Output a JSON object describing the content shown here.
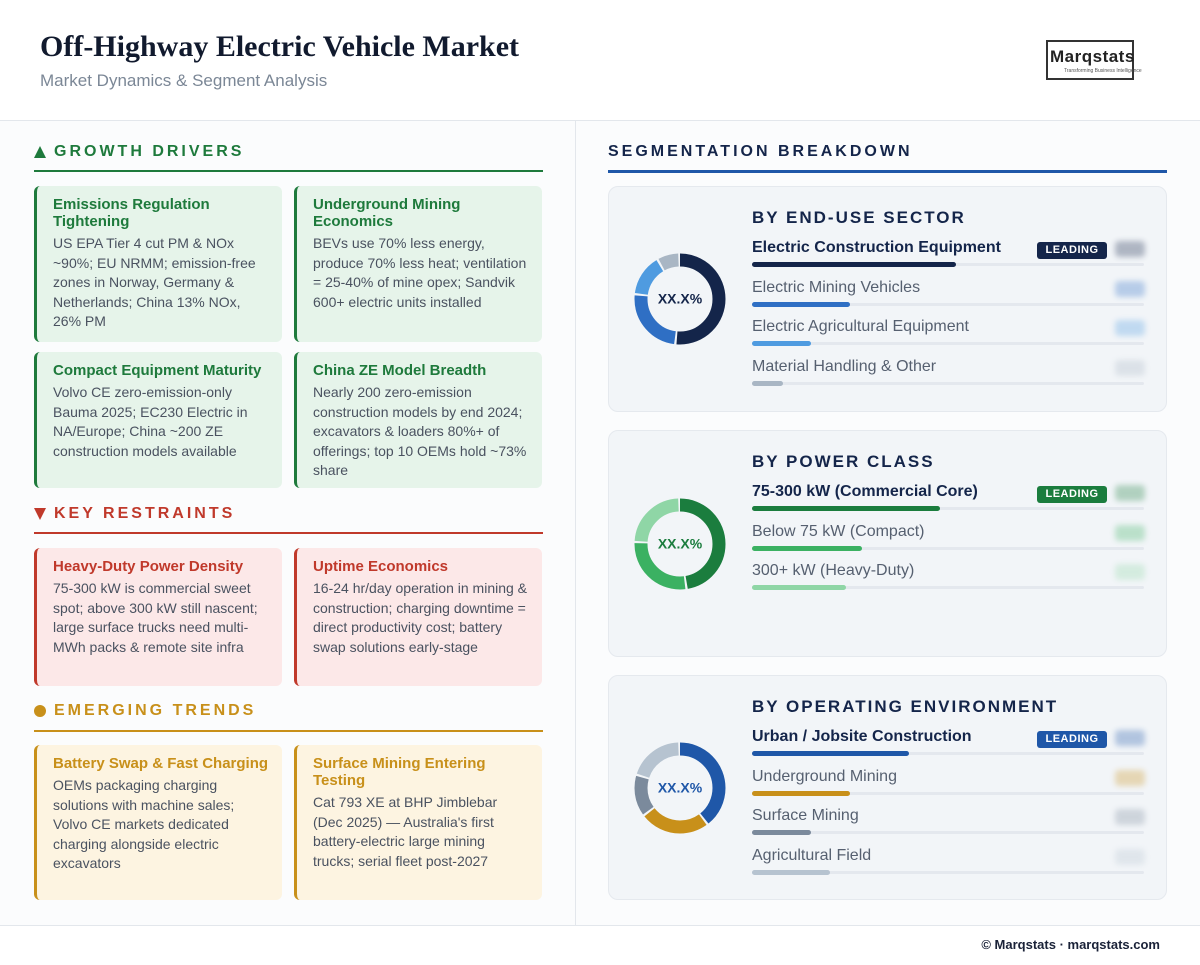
{
  "header": {
    "title": "Off-Highway Electric Vehicle Market",
    "subtitle": "Market Dynamics & Segment Analysis",
    "logo": {
      "name": "Marqstats",
      "tagline": "Transforming Business Intelligence"
    }
  },
  "sections": [
    {
      "title": "GROWTH DRIVERS",
      "color": "#1e7a3c",
      "background": "#e6f4ea",
      "cards": [
        {
          "title": "Emissions Regulation Tightening",
          "text": "US EPA Tier 4 cut PM & NOx ~90%; EU NRMM; emission-free zones in Norway, Germany & Netherlands; China 13% NOx, 26% PM"
        },
        {
          "title": "Underground Mining Economics",
          "text": "BEVs use 70% less energy, produce 70% less heat; ventilation = 25-40% of mine opex; Sandvik 600+ electric units installed"
        },
        {
          "title": "Compact Equipment Maturity",
          "text": "Volvo CE zero-emission-only Bauma 2025; EC230 Electric in NA/Europe; China ~200 ZE construction models available"
        },
        {
          "title": "China ZE Model Breadth",
          "text": "Nearly 200 zero-emission construction models by end 2024; excavators & loaders 80%+ of offerings; top 10 OEMs hold ~73% share"
        }
      ]
    },
    {
      "title": "KEY RESTRAINTS",
      "color": "#c0392b",
      "background": "#fce8e8",
      "cards": [
        {
          "title": "Heavy-Duty Power Density",
          "text": "75-300 kW is commercial sweet spot; above 300 kW still nascent; large surface trucks need multi-MWh packs & remote site infra"
        },
        {
          "title": "Uptime Economics",
          "text": "16-24 hr/day operation in mining & construction; charging downtime = direct productivity cost; battery swap solutions early-stage"
        }
      ]
    },
    {
      "title": "EMERGING TRENDS",
      "color": "#c8901a",
      "background": "#fdf4e1",
      "cards": [
        {
          "title": "Battery Swap & Fast Charging",
          "text": "OEMs packaging charging solutions with machine sales; Volvo CE markets dedicated charging alongside electric excavators"
        },
        {
          "title": "Surface Mining Entering Testing",
          "text": "Cat 793 XE at BHP Jimblebar (Dec 2025) — Australia's first battery-electric large mining trucks; serial fleet post-2027"
        }
      ]
    }
  ],
  "segmentation": {
    "title": "SEGMENTATION BREAKDOWN",
    "panels": [
      {
        "title": "BY END-USE SECTOR",
        "center_label": "XX.X%",
        "items": [
          {
            "name": "Electric Construction Equipment",
            "share": 52,
            "color": "#14254a",
            "badge": "LEADING"
          },
          {
            "name": "Electric Mining Vehicles",
            "share": 25,
            "color": "#2f6fc4"
          },
          {
            "name": "Electric Agricultural Equipment",
            "share": 15,
            "color": "#4f9be0"
          },
          {
            "name": "Material Handling & Other",
            "share": 8,
            "color": "#a9b6c4"
          }
        ]
      },
      {
        "title": "BY POWER CLASS",
        "center_label": "XX.X%",
        "items": [
          {
            "name": "75-300 kW (Commercial Core)",
            "share": 48,
            "color": "#1b7d3e",
            "badge": "LEADING"
          },
          {
            "name": "Below 75 kW (Compact)",
            "share": 28,
            "color": "#3bb162"
          },
          {
            "name": "300+ kW (Heavy-Duty)",
            "share": 24,
            "color": "#8fd6a6"
          }
        ]
      },
      {
        "title": "BY OPERATING ENVIRONMENT",
        "center_label": "XX.X%",
        "items": [
          {
            "name": "Urban / Jobsite Construction",
            "share": 40,
            "color": "#1f57a8",
            "badge": "LEADING"
          },
          {
            "name": "Underground Mining",
            "share": 25,
            "color": "#c8901a"
          },
          {
            "name": "Surface Mining",
            "share": 15,
            "color": "#7b8a9c"
          },
          {
            "name": "Agricultural Field",
            "share": 20,
            "color": "#b6c3d0"
          }
        ]
      }
    ]
  },
  "footer": "© Marqstats · marqstats.com"
}
